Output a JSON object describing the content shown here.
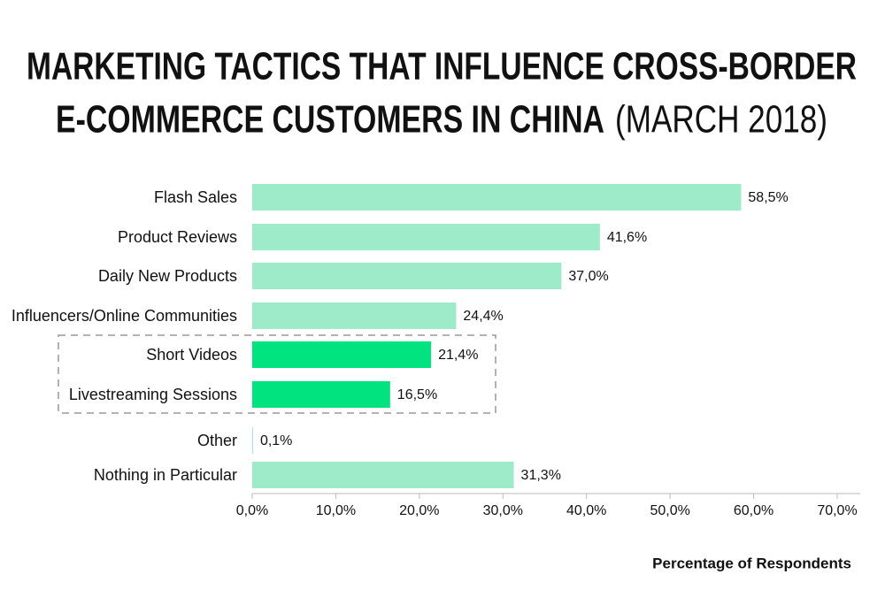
{
  "chart_data": {
    "type": "barh",
    "title": [
      "MARKETING TACTICS THAT INFLUENCE CROSS-BORDER",
      "E-COMMERCE CUSTOMERS IN CHINA"
    ],
    "title_date": "(MARCH 2018)",
    "categories": [
      "Flash Sales",
      "Product Reviews",
      "Daily New Products",
      "Influencers/Online Communities",
      "Short Videos",
      "Livestreaming Sessions",
      "Other",
      "Nothing in Particular"
    ],
    "values": [
      58.5,
      41.6,
      37.0,
      24.4,
      21.4,
      16.5,
      0.1,
      31.3
    ],
    "value_labels": [
      "58,5%",
      "41,6%",
      "37,0%",
      "24,4%",
      "21,4%",
      "16,5%",
      "0,1%",
      "31,3%"
    ],
    "colors": [
      "#9eebc9",
      "#9eebc9",
      "#9eebc9",
      "#9eebc9",
      "#00e37f",
      "#00e37f",
      "#9eebc9",
      "#9eebc9"
    ],
    "xlim": [
      0,
      70
    ],
    "xticks": [
      {
        "value": 0,
        "label": "0,0%"
      },
      {
        "value": 10,
        "label": "10,0%"
      },
      {
        "value": 20,
        "label": "20,0%"
      },
      {
        "value": 30,
        "label": "30,0%"
      },
      {
        "value": 40,
        "label": "40,0%"
      },
      {
        "value": 50,
        "label": "50,0%"
      },
      {
        "value": 60,
        "label": "60,0%"
      },
      {
        "value": 70,
        "label": "70,0%"
      }
    ],
    "xlabel": "Percentage of Respondents",
    "grid": false
  }
}
